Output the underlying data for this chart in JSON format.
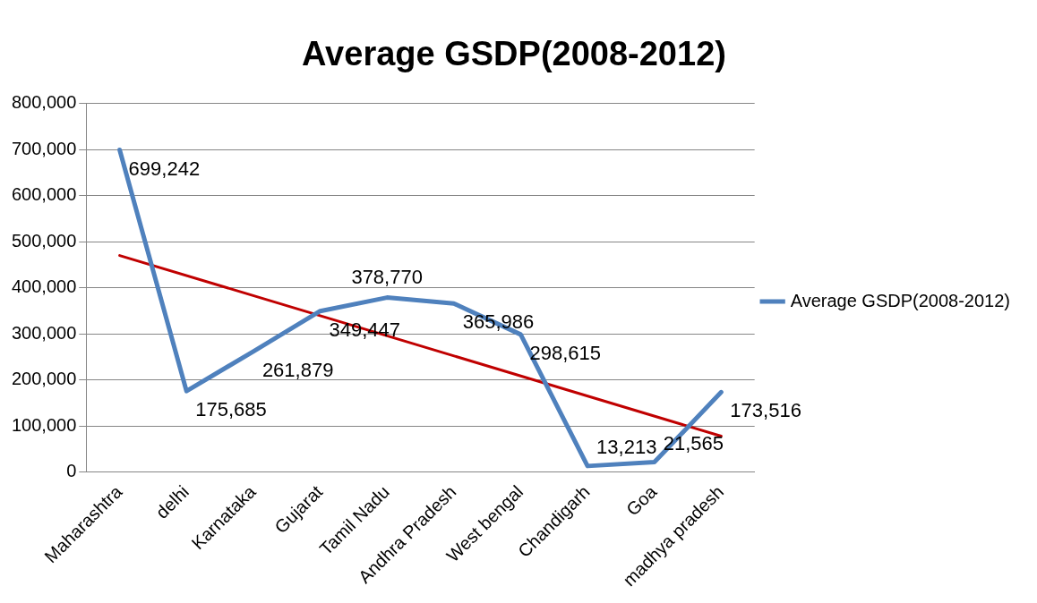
{
  "chart_data": {
    "type": "line",
    "title": "Average GSDP(2008-2012)",
    "categories": [
      "Maharashtra",
      "delhi",
      "Karnataka",
      "Gujarat",
      "Tamil Nadu",
      "Andhra Pradesh",
      "West bengal",
      "Chandigarh",
      "Goa",
      "madhya pradesh"
    ],
    "series": [
      {
        "name": "Average GSDP(2008-2012)",
        "color": "#4f81bd",
        "values": [
          699242,
          175685,
          261879,
          349447,
          378770,
          365986,
          298615,
          13213,
          21565,
          173516
        ],
        "value_labels": [
          "699,242",
          "175,685",
          "261,879",
          "349,447",
          "378,770",
          "365,986",
          "298,615",
          "13,213",
          "21,565",
          "173,516"
        ]
      },
      {
        "type": "line",
        "color": "#c00000",
        "x": [
          "Maharashtra",
          "madhya pradesh"
        ],
        "values": [
          470000,
          78000
        ]
      }
    ],
    "ylim": [
      0,
      800000
    ],
    "yticks": [
      {
        "value": 0,
        "label": "0"
      },
      {
        "value": 100000,
        "label": "100,000"
      },
      {
        "value": 200000,
        "label": "200,000"
      },
      {
        "value": 300000,
        "label": "300,000"
      },
      {
        "value": 400000,
        "label": "400,000"
      },
      {
        "value": 500000,
        "label": "500,000"
      },
      {
        "value": 600000,
        "label": "600,000"
      },
      {
        "value": 700000,
        "label": "700,000"
      },
      {
        "value": 800000,
        "label": "800,000"
      }
    ],
    "grid": "y",
    "legend": "right",
    "marker": "none",
    "line_style": "solid"
  }
}
